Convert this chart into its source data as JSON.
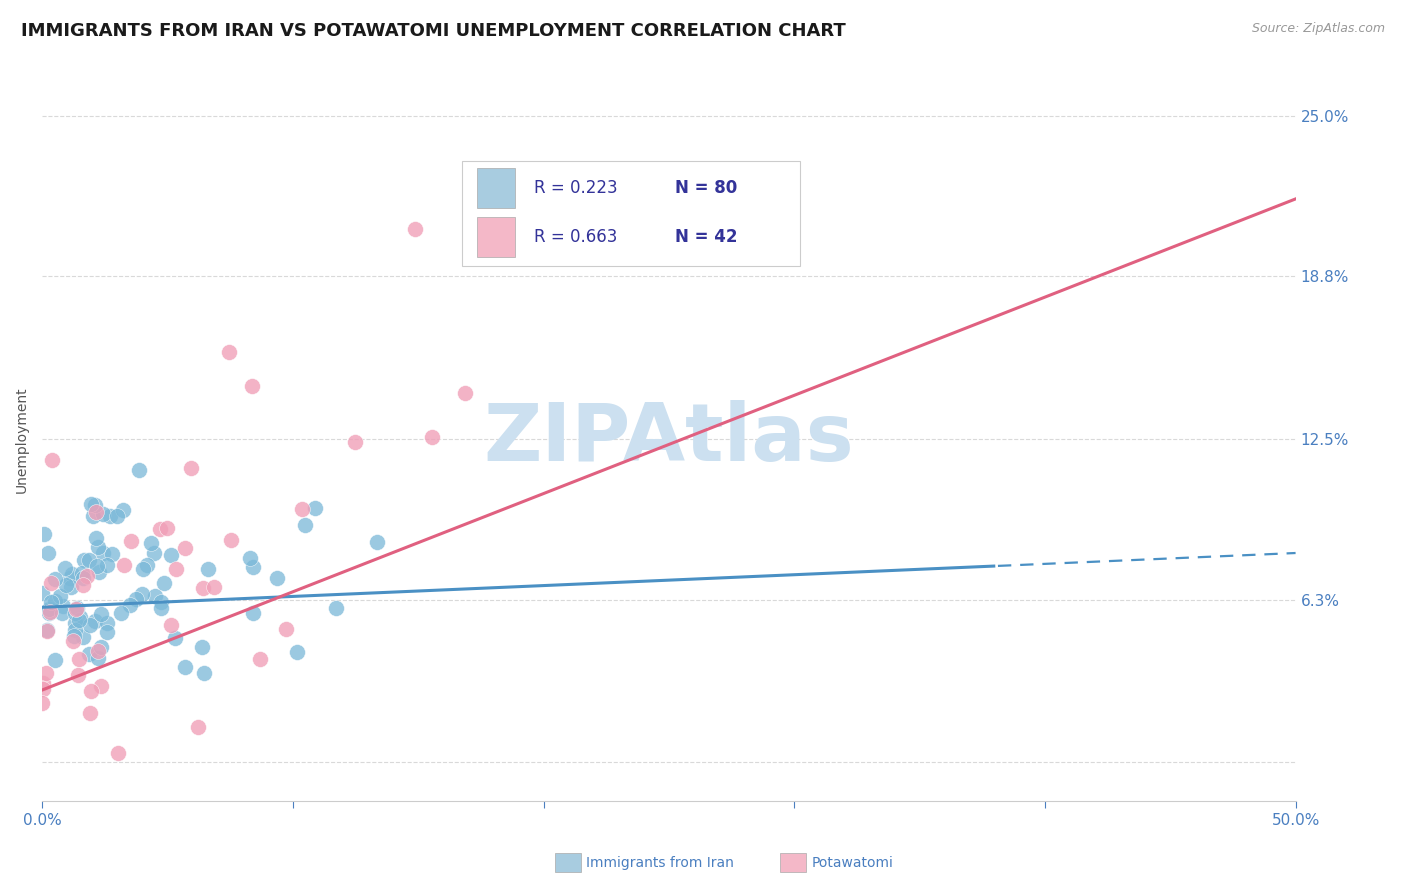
{
  "title": "IMMIGRANTS FROM IRAN VS POTAWATOMI UNEMPLOYMENT CORRELATION CHART",
  "source": "Source: ZipAtlas.com",
  "ylabel": "Unemployment",
  "xlim": [
    0.0,
    0.5
  ],
  "ylim": [
    -0.015,
    0.265
  ],
  "yticks": [
    0.0,
    0.063,
    0.125,
    0.188,
    0.25
  ],
  "ytick_labels": [
    "",
    "6.3%",
    "12.5%",
    "18.8%",
    "25.0%"
  ],
  "xtick_labels": [
    "0.0%",
    "",
    "",
    "",
    "",
    "50.0%"
  ],
  "blue_color": "#a8cce0",
  "pink_color": "#f4b8c8",
  "blue_line_color": "#4a90c4",
  "pink_line_color": "#e06080",
  "blue_scatter_color": "#7ab8d8",
  "pink_scatter_color": "#f0a0b8",
  "legend_blue_box": "#a8cce0",
  "legend_pink_box": "#f4b8c8",
  "legend_text_color": "#333399",
  "legend_N_color": "#cc3333",
  "N1": 80,
  "N2": 42,
  "blue_seed": 7,
  "pink_seed": 13,
  "watermark": "ZIPAtlas",
  "watermark_color": "#cce0f0",
  "background_color": "#ffffff",
  "title_fontsize": 13,
  "axis_label_fontsize": 10,
  "tick_fontsize": 11,
  "tick_color": "#4a7fc0",
  "grid_color": "#d0d0d0",
  "grid_style": "--",
  "grid_alpha": 0.8,
  "blue_trend_solid_end": 0.38,
  "blue_trend_m": 0.042,
  "blue_trend_b": 0.06,
  "pink_trend_m": 0.38,
  "pink_trend_b": 0.028
}
